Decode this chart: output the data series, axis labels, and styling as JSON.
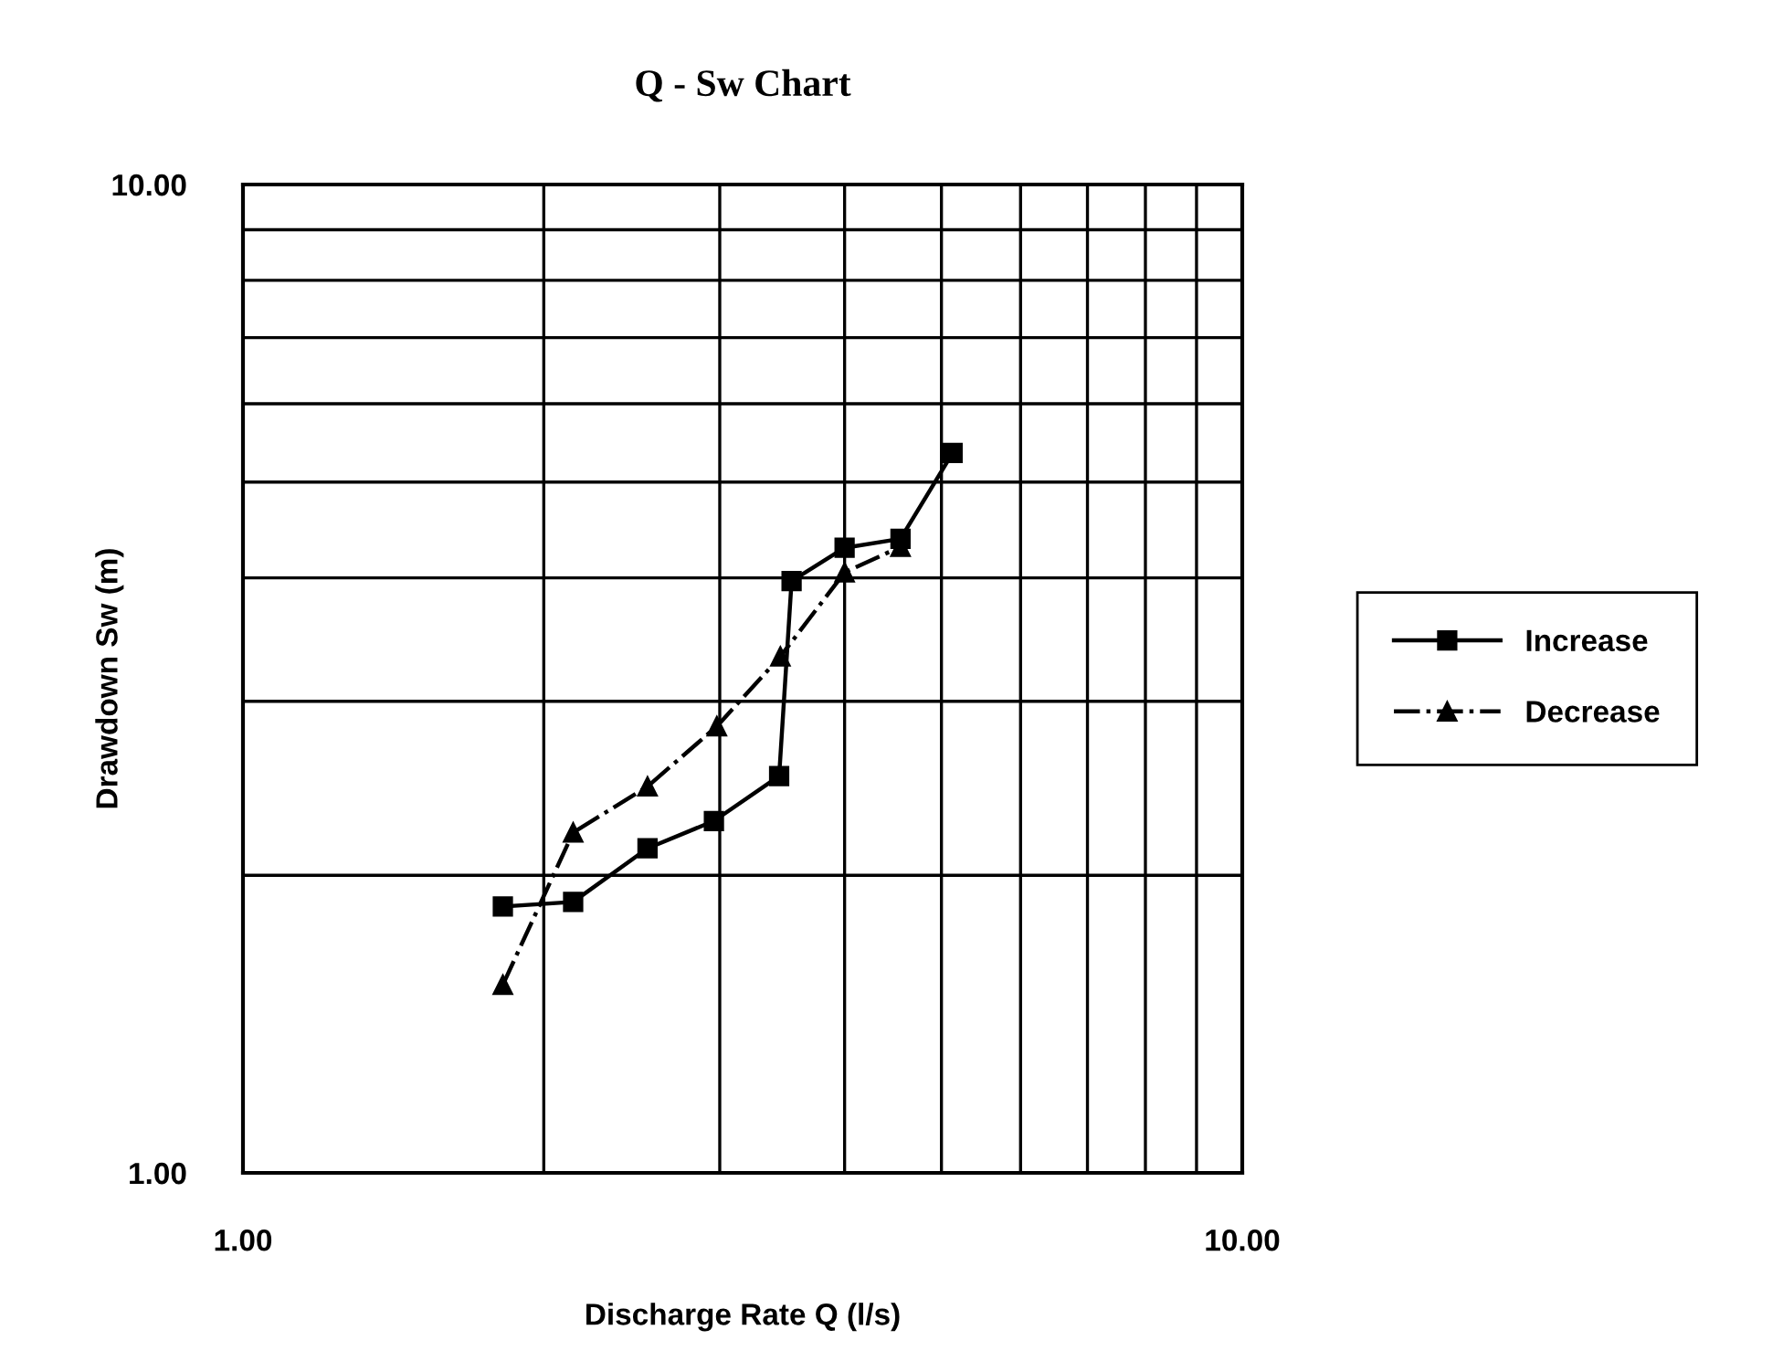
{
  "chart_data": {
    "type": "line",
    "title": "Q - Sw Chart",
    "xlabel": "Discharge Rate Q (l/s)",
    "ylabel": "Drawdown Sw (m)",
    "log": "xy",
    "xlim": [
      1,
      10
    ],
    "ylim": [
      1,
      10
    ],
    "xticks": [
      {
        "value": 1,
        "label": "1.00"
      },
      {
        "value": 10,
        "label": "10.00"
      }
    ],
    "yticks": [
      {
        "value": 1,
        "label": "1.00"
      },
      {
        "value": 10,
        "label": "10.00"
      }
    ],
    "grid": true,
    "legend": "right",
    "series": [
      {
        "name": "Increase",
        "color": "#000000",
        "marker": "square",
        "line_style": "solid",
        "x": [
          1.82,
          2.14,
          2.54,
          2.96,
          3.44,
          3.54,
          4.0,
          4.55,
          5.13
        ],
        "values": [
          1.86,
          1.88,
          2.13,
          2.27,
          2.52,
          3.97,
          4.29,
          4.38,
          5.35
        ]
      },
      {
        "name": "Decrease",
        "color": "#000000",
        "marker": "triangle",
        "line_style": "dashdot",
        "x": [
          1.82,
          2.14,
          2.54,
          2.98,
          3.45,
          4.0,
          4.55
        ],
        "values": [
          1.55,
          2.21,
          2.46,
          2.83,
          3.33,
          4.05,
          4.3
        ]
      }
    ]
  }
}
